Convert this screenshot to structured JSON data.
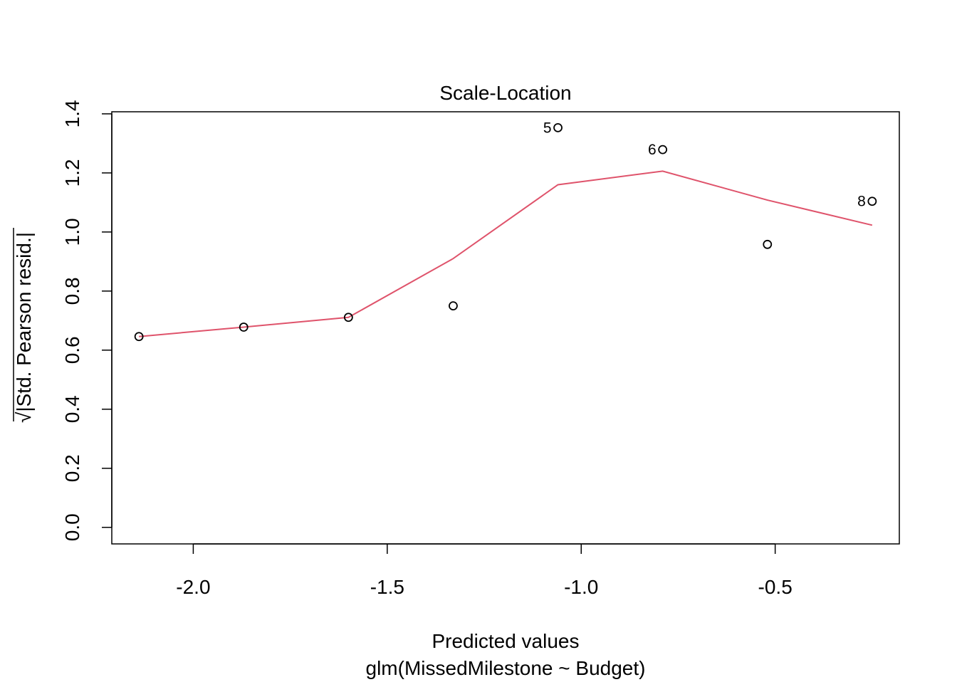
{
  "chart_data": {
    "type": "scatter",
    "title": "Scale-Location",
    "xlabel": "Predicted values",
    "subtitle": "glm(MissedMilestone ~ Budget)",
    "ylabel_radical": "√",
    "ylabel_text": "|Std. Pearson resid.|",
    "xlim": [
      -2.21,
      -0.18
    ],
    "ylim": [
      -0.056,
      1.407
    ],
    "x_ticks": [
      -2.0,
      -1.5,
      -1.0,
      -0.5
    ],
    "x_tick_labels": [
      "-2.0",
      "-1.5",
      "-1.0",
      "-0.5"
    ],
    "y_ticks": [
      0.0,
      0.2,
      0.4,
      0.6,
      0.8,
      1.0,
      1.2,
      1.4
    ],
    "y_tick_labels": [
      "0.0",
      "0.2",
      "0.4",
      "0.6",
      "0.8",
      "1.0",
      "1.2",
      "1.4"
    ],
    "grid": false,
    "points": [
      {
        "x": -2.14,
        "y": 0.646,
        "label": ""
      },
      {
        "x": -1.87,
        "y": 0.678,
        "label": ""
      },
      {
        "x": -1.6,
        "y": 0.711,
        "label": ""
      },
      {
        "x": -1.33,
        "y": 0.75,
        "label": ""
      },
      {
        "x": -1.06,
        "y": 1.353,
        "label": "5"
      },
      {
        "x": -0.79,
        "y": 1.279,
        "label": "6"
      },
      {
        "x": -0.52,
        "y": 0.958,
        "label": ""
      },
      {
        "x": -0.25,
        "y": 1.104,
        "label": "8"
      }
    ],
    "smooth_line": {
      "color": "#DF536B",
      "x": [
        -2.14,
        -1.87,
        -1.6,
        -1.33,
        -1.06,
        -0.79,
        -0.52,
        -0.25
      ],
      "y": [
        0.646,
        0.678,
        0.711,
        0.91,
        1.16,
        1.206,
        1.108,
        1.023
      ]
    },
    "point_color": "#000000",
    "axis_color": "#000000"
  }
}
